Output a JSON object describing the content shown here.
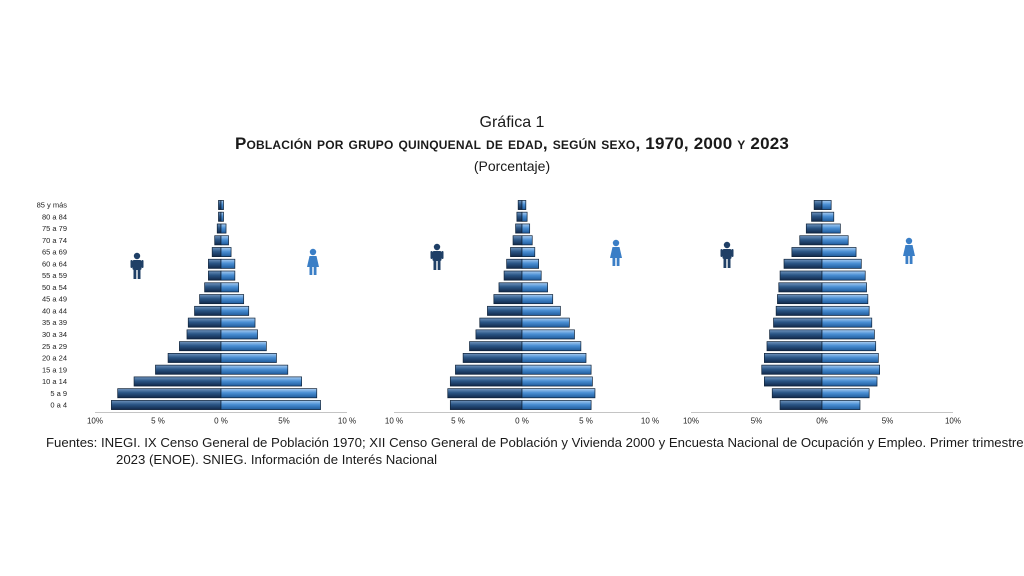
{
  "header": {
    "label": "Gráfica 1",
    "title": "Población por grupo quinquenal de edad, según sexo, 1970, 2000 y 2023",
    "subtitle": "(Porcentaje)"
  },
  "footnote": "Fuentes: INEGI. IX Censo General de Población 1970; XII Censo General de Población y Vivienda 2000 y Encuesta Nacional de Ocupación y Empleo. Primer trimestre 2023 (ENOE). SNIEG. Información de Interés Nacional",
  "icons": {
    "male": "male-person-icon",
    "female": "female-person-icon"
  },
  "colors": {
    "male": "#1f3f66",
    "female": "#3a7ec6",
    "outline": "#0f2238"
  },
  "chart_data": [
    {
      "type": "bar",
      "age_groups": [
        "0 a 4",
        "5 a 9",
        "10 a 14",
        "15 a 19",
        "20 a 24",
        "25 a 29",
        "30 a 34",
        "35 a 39",
        "40 a 44",
        "45 a 49",
        "50 a 54",
        "55 a 59",
        "60 a 64",
        "65 a 69",
        "70 a 74",
        "75 a 79",
        "80 a 84",
        "85 y más"
      ],
      "x_ticks": [
        "10%",
        "5 %",
        "0 %",
        "5%",
        "10 %"
      ],
      "xlim": [
        -10,
        10
      ],
      "series": [
        {
          "values": [
            8.7,
            8.2,
            6.9,
            5.2,
            4.2,
            3.3,
            2.7,
            2.6,
            2.1,
            1.7,
            1.3,
            1.0,
            1.0,
            0.7,
            0.5,
            0.3,
            0.2,
            0.2
          ]
        },
        {
          "values": [
            7.9,
            7.6,
            6.4,
            5.3,
            4.4,
            3.6,
            2.9,
            2.7,
            2.2,
            1.8,
            1.4,
            1.1,
            1.1,
            0.8,
            0.6,
            0.4,
            0.2,
            0.2
          ]
        }
      ]
    },
    {
      "type": "bar",
      "age_groups": [
        "0 a 4",
        "5 a 9",
        "10 a 14",
        "15 a 19",
        "20 a 24",
        "25 a 29",
        "30 a 34",
        "35 a 39",
        "40 a 44",
        "45 a 49",
        "50 a 54",
        "55 a 59",
        "60 a 64",
        "65 a 69",
        "70 a 74",
        "75 a 79",
        "80 a 84",
        "85 y más"
      ],
      "x_ticks": [
        "10 %",
        "5 %",
        "0 %",
        "5 %",
        "10 %"
      ],
      "xlim": [
        -10,
        10
      ],
      "series": [
        {
          "values": [
            5.6,
            5.8,
            5.6,
            5.2,
            4.6,
            4.1,
            3.6,
            3.3,
            2.7,
            2.2,
            1.8,
            1.4,
            1.2,
            0.9,
            0.7,
            0.5,
            0.4,
            0.3
          ]
        },
        {
          "values": [
            5.4,
            5.7,
            5.5,
            5.4,
            5.0,
            4.6,
            4.1,
            3.7,
            3.0,
            2.4,
            2.0,
            1.5,
            1.3,
            1.0,
            0.8,
            0.6,
            0.4,
            0.3
          ]
        }
      ]
    },
    {
      "type": "bar",
      "age_groups": [
        "0 a 4",
        "5 a 9",
        "10 a 14",
        "15 a 19",
        "20 a 24",
        "25 a 29",
        "30 a 34",
        "35 a 39",
        "40 a 44",
        "45 a 49",
        "50 a 54",
        "55 a 59",
        "60 a 64",
        "65 a 69",
        "70 a 74",
        "75 a 79",
        "80 a 84",
        "85 y más"
      ],
      "x_ticks": [
        "10%",
        "5%",
        "0%",
        "5%",
        "10%"
      ],
      "xlim": [
        -10,
        10
      ],
      "series": [
        {
          "values": [
            3.2,
            3.8,
            4.4,
            4.6,
            4.4,
            4.2,
            4.0,
            3.7,
            3.5,
            3.4,
            3.3,
            3.2,
            2.9,
            2.3,
            1.7,
            1.2,
            0.8,
            0.6
          ]
        },
        {
          "values": [
            2.9,
            3.6,
            4.2,
            4.4,
            4.3,
            4.1,
            4.0,
            3.8,
            3.6,
            3.5,
            3.4,
            3.3,
            3.0,
            2.6,
            2.0,
            1.4,
            0.9,
            0.7
          ]
        }
      ]
    }
  ]
}
